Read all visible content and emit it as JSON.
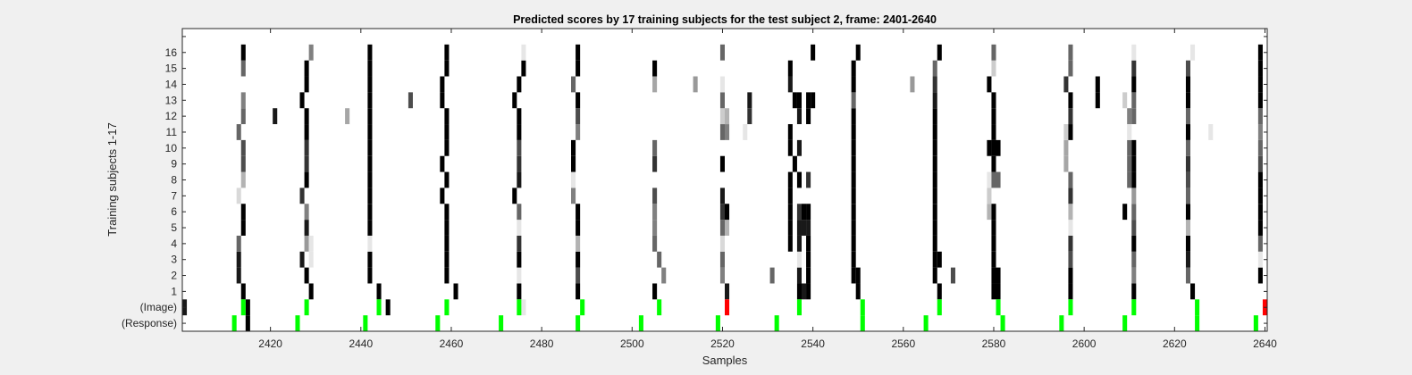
{
  "chart_data": {
    "type": "heatmap",
    "title": "Predicted scores by 17 training subjects for the test subject 2, frame: 2401-2640",
    "xlabel": "Samples",
    "ylabel": "Training subjects 1-17",
    "xlim": [
      2401,
      2640
    ],
    "xticks": [
      2420,
      2440,
      2460,
      2480,
      2500,
      2520,
      2540,
      2560,
      2580,
      2600,
      2620,
      2640
    ],
    "row_labels": [
      "(Response)",
      "(Image)",
      "1",
      "2",
      "3",
      "4",
      "5",
      "6",
      "7",
      "8",
      "9",
      "10",
      "11",
      "12",
      "13",
      "14",
      "15",
      "16",
      ""
    ],
    "colors": {
      "background": "#f0f0f0",
      "plot_bg": "#ffffff",
      "correct": "#00ff00",
      "incorrect": "#ff0000",
      "score_high": "#000000"
    },
    "image_events": [
      {
        "x": 2414,
        "color": "green"
      },
      {
        "x": 2428,
        "color": "green"
      },
      {
        "x": 2444,
        "color": "green"
      },
      {
        "x": 2459,
        "color": "green"
      },
      {
        "x": 2475,
        "color": "green"
      },
      {
        "x": 2489,
        "color": "green"
      },
      {
        "x": 2506,
        "color": "green"
      },
      {
        "x": 2521,
        "color": "red"
      },
      {
        "x": 2537,
        "color": "green"
      },
      {
        "x": 2551,
        "color": "green"
      },
      {
        "x": 2568,
        "color": "green"
      },
      {
        "x": 2581,
        "color": "green"
      },
      {
        "x": 2597,
        "color": "green"
      },
      {
        "x": 2611,
        "color": "green"
      },
      {
        "x": 2625,
        "color": "green"
      },
      {
        "x": 2640,
        "color": "red"
      }
    ],
    "response_events": [
      2412,
      2426,
      2441,
      2457,
      2471,
      2488,
      2502,
      2519,
      2532,
      2551,
      2565,
      2582,
      2595,
      2609,
      2625,
      2638
    ],
    "score_columns": [
      {
        "x": 2401,
        "rows": [
          1
        ],
        "values": [
          0.9
        ]
      },
      {
        "x": 2413,
        "rows": [
          3,
          4,
          5,
          8,
          12
        ],
        "values": [
          0.9,
          0.9,
          0.6,
          0.15,
          0.6
        ]
      },
      {
        "x": 2414,
        "rows": [
          2,
          6,
          7,
          9,
          10,
          11,
          13,
          14,
          16,
          17
        ],
        "values": [
          1,
          1,
          1,
          0.3,
          0.7,
          0.7,
          0.6,
          0.5,
          0.6,
          1
        ]
      },
      {
        "x": 2415,
        "rows": [
          0,
          1
        ],
        "values": [
          1,
          1
        ]
      },
      {
        "x": 2421,
        "rows": [
          13
        ],
        "values": [
          0.9
        ]
      },
      {
        "x": 2427,
        "rows": [
          4,
          8,
          14
        ],
        "values": [
          0.9,
          0.8,
          1
        ]
      },
      {
        "x": 2428,
        "rows": [
          3,
          5,
          6,
          7,
          9,
          10,
          11,
          12,
          13,
          15,
          16
        ],
        "values": [
          1,
          0.4,
          0.9,
          0.5,
          1,
          0.8,
          0.8,
          1,
          1,
          1,
          1
        ]
      },
      {
        "x": 2429,
        "rows": [
          2,
          4,
          5,
          17
        ],
        "values": [
          1,
          0.1,
          0.1,
          0.5
        ]
      },
      {
        "x": 2437,
        "rows": [
          13
        ],
        "values": [
          0.35
        ]
      },
      {
        "x": 2442,
        "rows": [
          3,
          4,
          5,
          6,
          7,
          8,
          9,
          10,
          11,
          12,
          13,
          14,
          15,
          16,
          17
        ],
        "values": [
          1,
          1,
          0.1,
          1,
          1,
          1,
          1,
          1,
          1,
          1,
          1,
          1,
          1,
          1,
          1
        ]
      },
      {
        "x": 2444,
        "rows": [
          2
        ],
        "values": [
          1
        ]
      },
      {
        "x": 2446,
        "rows": [
          1
        ],
        "values": [
          1
        ]
      },
      {
        "x": 2451,
        "rows": [
          14
        ],
        "values": [
          0.7
        ]
      },
      {
        "x": 2458,
        "rows": [
          8,
          10,
          14,
          15
        ],
        "values": [
          1,
          1,
          1,
          1
        ]
      },
      {
        "x": 2459,
        "rows": [
          3,
          4,
          5,
          6,
          7,
          9,
          11,
          12,
          13,
          16,
          17
        ],
        "values": [
          1,
          1,
          1,
          1,
          1,
          1,
          1,
          1,
          1,
          1,
          1
        ]
      },
      {
        "x": 2461,
        "rows": [
          2
        ],
        "values": [
          1
        ]
      },
      {
        "x": 2474,
        "rows": [
          8,
          14
        ],
        "values": [
          1,
          1
        ]
      },
      {
        "x": 2475,
        "rows": [
          2,
          3,
          4,
          5,
          6,
          7,
          9,
          10,
          11,
          12,
          13,
          15
        ],
        "values": [
          1,
          0.1,
          1,
          0.8,
          0.1,
          0.6,
          0.9,
          0.8,
          0.7,
          1,
          1,
          1
        ]
      },
      {
        "x": 2476,
        "rows": [
          1,
          16,
          17
        ],
        "values": [
          0.1,
          1,
          0.1
        ]
      },
      {
        "x": 2487,
        "rows": [
          8,
          9,
          10,
          11,
          15
        ],
        "values": [
          0.5,
          0.1,
          1,
          1,
          0.6
        ]
      },
      {
        "x": 2488,
        "rows": [
          2,
          3,
          4,
          5,
          6,
          7,
          12,
          13,
          14,
          16,
          17
        ],
        "values": [
          1,
          0.7,
          1,
          0.3,
          1,
          1,
          0.5,
          0.7,
          1,
          1,
          1
        ]
      },
      {
        "x": 2505,
        "rows": [
          2,
          5,
          6,
          7,
          8,
          10,
          11,
          16
        ],
        "values": [
          1,
          0.6,
          0.5,
          0.5,
          0.7,
          0.8,
          0.6,
          1
        ]
      },
      {
        "x": 2506,
        "rows": [
          4
        ],
        "values": [
          0.6
        ]
      },
      {
        "x": 2507,
        "rows": [
          3
        ],
        "values": [
          0.5
        ]
      },
      {
        "x": 2505,
        "rows": [
          15
        ],
        "values": [
          0.35
        ]
      },
      {
        "x": 2514,
        "rows": [
          15
        ],
        "values": [
          0.4
        ]
      },
      {
        "x": 2520,
        "rows": [
          3,
          4,
          5,
          6,
          7,
          8,
          10,
          12,
          13,
          14,
          15,
          17
        ],
        "values": [
          0.5,
          0.6,
          0.15,
          0.6,
          0.8,
          0.9,
          1,
          0.6,
          0.2,
          0.6,
          0.1,
          0.6
        ]
      },
      {
        "x": 2521,
        "rows": [
          2,
          6,
          7,
          12,
          13
        ],
        "values": [
          0.9,
          0.3,
          1,
          0.5,
          0.3
        ]
      },
      {
        "x": 2525,
        "rows": [
          12
        ],
        "values": [
          0.1
        ]
      },
      {
        "x": 2526,
        "rows": [
          13,
          14
        ],
        "values": [
          0.8,
          0.9
        ]
      },
      {
        "x": 2531,
        "rows": [
          3
        ],
        "values": [
          0.6
        ]
      },
      {
        "x": 2535,
        "rows": [
          5,
          6,
          7,
          8,
          9,
          11,
          12,
          15,
          16
        ],
        "values": [
          1,
          1,
          1,
          1,
          1,
          1,
          1,
          0.9,
          1
        ]
      },
      {
        "x": 2536,
        "rows": [
          10,
          14
        ],
        "values": [
          1,
          1
        ]
      },
      {
        "x": 2537,
        "rows": [
          2,
          3,
          4,
          5,
          6,
          7,
          9,
          11,
          13,
          14
        ],
        "values": [
          1,
          0.9,
          0.1,
          0.9,
          0.9,
          0.8,
          1,
          0.9,
          0.9,
          1
        ]
      },
      {
        "x": 2538,
        "rows": [
          2,
          6,
          7
        ],
        "values": [
          0.9,
          0.9,
          1
        ]
      },
      {
        "x": 2539,
        "rows": [
          2,
          3,
          4,
          5,
          6,
          7,
          9,
          13,
          14
        ],
        "values": [
          1,
          1,
          1,
          1,
          0.9,
          1,
          0.8,
          1,
          1
        ]
      },
      {
        "x": 2540,
        "rows": [
          14,
          17
        ],
        "values": [
          1,
          1
        ]
      },
      {
        "x": 2549,
        "rows": [
          3,
          4,
          5,
          6,
          7,
          8,
          9,
          10,
          11,
          12,
          13,
          14,
          15,
          16
        ],
        "values": [
          1,
          1,
          1,
          1,
          1,
          1,
          1,
          1,
          1,
          1,
          1,
          0.6,
          1,
          1
        ]
      },
      {
        "x": 2550,
        "rows": [
          2,
          3,
          17
        ],
        "values": [
          1,
          1,
          1
        ]
      },
      {
        "x": 2562,
        "rows": [
          15
        ],
        "values": [
          0.4
        ]
      },
      {
        "x": 2567,
        "rows": [
          3,
          4,
          5,
          6,
          7,
          8,
          9,
          10,
          11,
          12,
          13,
          14,
          15,
          16
        ],
        "values": [
          1,
          1,
          1,
          1,
          1,
          1,
          1,
          1,
          1,
          1,
          1,
          0.9,
          0.8,
          0.6
        ]
      },
      {
        "x": 2568,
        "rows": [
          2,
          4,
          17
        ],
        "values": [
          1,
          1,
          1
        ]
      },
      {
        "x": 2571,
        "rows": [
          3
        ],
        "values": [
          0.7
        ]
      },
      {
        "x": 2579,
        "rows": [
          7,
          8,
          9,
          11,
          15
        ],
        "values": [
          0.3,
          0.2,
          0.1,
          1,
          1
        ]
      },
      {
        "x": 2580,
        "rows": [
          2,
          3,
          4,
          5,
          6,
          7,
          9,
          10,
          11,
          12,
          13,
          14,
          16,
          17
        ],
        "values": [
          1,
          1,
          1,
          1,
          1,
          1,
          0.6,
          1,
          1,
          1,
          1,
          1,
          0.2,
          0.6
        ]
      },
      {
        "x": 2581,
        "rows": [
          2,
          3,
          9,
          11
        ],
        "values": [
          1,
          1,
          0.6,
          1
        ]
      },
      {
        "x": 2596,
        "rows": [
          10,
          11,
          12,
          15
        ],
        "values": [
          0.35,
          0.35,
          0.2,
          0.8
        ]
      },
      {
        "x": 2597,
        "rows": [
          2,
          3,
          4,
          5,
          6,
          7,
          8,
          9,
          12,
          13,
          14,
          16,
          17
        ],
        "values": [
          1,
          1,
          0.7,
          0.8,
          0.1,
          0.3,
          0.8,
          0.6,
          1,
          0.8,
          1,
          0.6,
          0.6
        ]
      },
      {
        "x": 2603,
        "rows": [
          14,
          15
        ],
        "values": [
          1,
          1
        ]
      },
      {
        "x": 2609,
        "rows": [
          7,
          14
        ],
        "values": [
          1,
          0.2
        ]
      },
      {
        "x": 2610,
        "rows": [
          9,
          10,
          11,
          12,
          13
        ],
        "values": [
          0.6,
          0.6,
          0.6,
          0.1,
          0.5
        ]
      },
      {
        "x": 2611,
        "rows": [
          2,
          3,
          4,
          5,
          6,
          7,
          8,
          9,
          10,
          11,
          13,
          14,
          15,
          16,
          17
        ],
        "values": [
          1,
          0.5,
          0.6,
          1,
          0.7,
          0.6,
          0.4,
          1,
          1,
          1,
          0.6,
          0.6,
          1,
          0.8,
          0.1
        ]
      },
      {
        "x": 2623,
        "rows": [
          3,
          4,
          5,
          6,
          7,
          8,
          9,
          10,
          11,
          12,
          13,
          14,
          15,
          16
        ],
        "values": [
          0.6,
          0.9,
          1,
          0.3,
          1,
          0.6,
          0.7,
          0.8,
          0.6,
          1,
          0.6,
          1,
          1,
          0.7
        ]
      },
      {
        "x": 2624,
        "rows": [
          2,
          17
        ],
        "values": [
          1,
          0.1
        ]
      },
      {
        "x": 2628,
        "rows": [
          12
        ],
        "values": [
          0.1
        ]
      },
      {
        "x": 2639,
        "rows": [
          3,
          4,
          5,
          6,
          7,
          8,
          9,
          10,
          11,
          12,
          13,
          14,
          15,
          16,
          17
        ],
        "values": [
          1,
          0.1,
          0.6,
          1,
          1,
          1,
          1,
          0.7,
          0.6,
          0.5,
          0.6,
          1,
          1,
          1,
          1
        ]
      }
    ]
  }
}
